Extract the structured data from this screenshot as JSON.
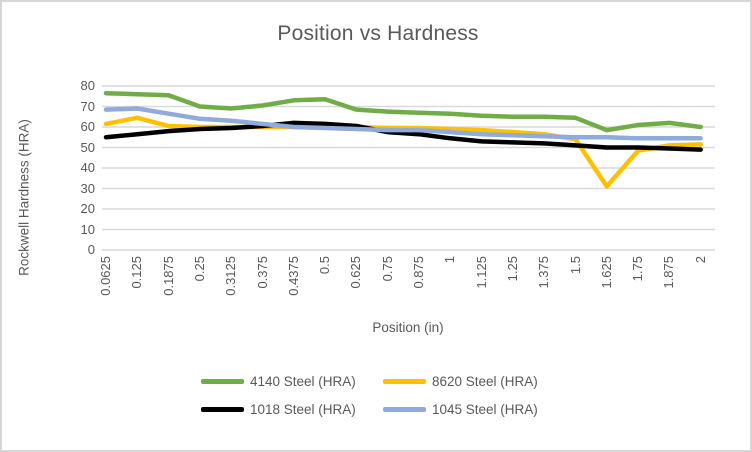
{
  "window": {
    "background": "#FFFFFF",
    "border_color": "#D6D6D6",
    "text_color": "#595959",
    "gridline_color": "#D9D9D9"
  },
  "chart": {
    "title": "Position vs Hardness",
    "y_axis_title": "Rockwell Hardness (HRA)",
    "x_axis_title": "Position (in)"
  },
  "legend": {
    "items": [
      {
        "label": "4140 Steel (HRA)",
        "color": "#70AD47"
      },
      {
        "label": "8620 Steel (HRA)",
        "color": "#FFC000"
      },
      {
        "label": "1018 Steel (HRA)",
        "color": "#000000"
      },
      {
        "label": "1045 Steel (HRA)",
        "color": "#8FAADC"
      }
    ]
  },
  "chart_data": {
    "type": "line",
    "title": "Position vs Hardness",
    "xlabel": "Position (in)",
    "ylabel": "Rockwell Hardness (HRA)",
    "categories": [
      "0.0625",
      "0.125",
      "0.1875",
      "0.25",
      "0.3125",
      "0.375",
      "0.4375",
      "0.5",
      "0.625",
      "0.75",
      "0.875",
      "1",
      "1.125",
      "1.25",
      "1.375",
      "1.5",
      "1.625",
      "1.75",
      "1.875",
      "2"
    ],
    "series": [
      {
        "name": "4140 Steel (HRA)",
        "color": "#70AD47",
        "values": [
          76.5,
          76,
          75.5,
          70,
          69,
          70.5,
          73,
          73.5,
          68.5,
          67.5,
          67,
          66.5,
          65.5,
          65,
          65,
          64.5,
          58.5,
          61,
          62,
          60
        ]
      },
      {
        "name": "8620 Steel (HRA)",
        "color": "#FFC000",
        "values": [
          61.5,
          64.5,
          60.5,
          60,
          60,
          60,
          60,
          60,
          60,
          59.5,
          59.5,
          59,
          58.5,
          57.5,
          56.5,
          54,
          31,
          48.5,
          51,
          51.5
        ]
      },
      {
        "name": "1018 Steel (HRA)",
        "color": "#000000",
        "values": [
          55,
          56.5,
          58,
          59,
          59.5,
          60.5,
          62,
          61.5,
          60.5,
          57.5,
          56.5,
          54.5,
          53,
          52.5,
          52,
          51,
          50,
          50,
          49.5,
          49
        ]
      },
      {
        "name": "1045 Steel (HRA)",
        "color": "#8FAADC",
        "values": [
          68.5,
          69,
          66.5,
          64,
          63,
          61.5,
          60,
          59.5,
          59,
          58.5,
          58.5,
          57.5,
          56.5,
          56,
          55.5,
          55,
          55,
          54.5,
          54.5,
          54.5
        ]
      }
    ],
    "draw_order": [
      "4140 Steel (HRA)",
      "8620 Steel (HRA)",
      "1018 Steel (HRA)",
      "1045 Steel (HRA)"
    ],
    "ylim": [
      0,
      80
    ],
    "yticks": [
      0,
      10,
      20,
      30,
      40,
      50,
      60,
      70,
      80
    ],
    "grid": true,
    "legend_position": "bottom",
    "line_width": 4.5
  }
}
